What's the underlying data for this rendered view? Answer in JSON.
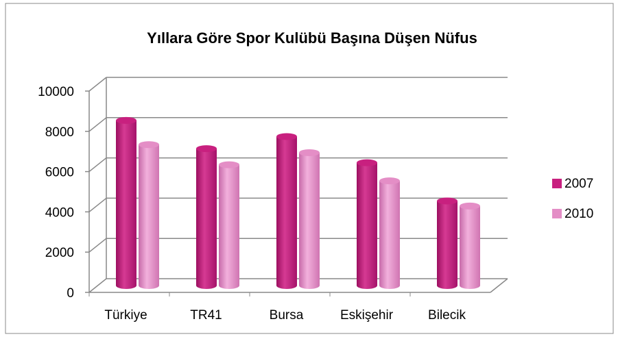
{
  "chart_data": {
    "type": "bar",
    "title": "Yıllara Göre Spor Kulübü Başına Düşen Nüfus",
    "categories": [
      "Türkiye",
      "TR41",
      "Bursa",
      "Eskişehir",
      "Bilecik"
    ],
    "series": [
      {
        "name": "2007",
        "color": "#c8207f",
        "values": [
          8200,
          6800,
          7400,
          6100,
          4200
        ]
      },
      {
        "name": "2010",
        "color": "#e48ec6",
        "values": [
          7000,
          6000,
          6600,
          5200,
          3950
        ]
      }
    ],
    "ylim": [
      0,
      10000
    ],
    "yticks": [
      0,
      2000,
      4000,
      6000,
      8000,
      10000
    ],
    "grid": true,
    "legend": "right"
  }
}
